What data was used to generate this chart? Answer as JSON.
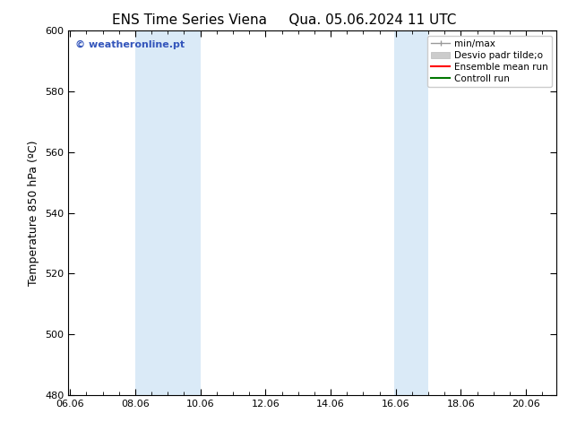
{
  "title_left": "ENS Time Series Viena",
  "title_right": "Qua. 05.06.2024 11 UTC",
  "ylabel": "Temperature 850 hPa (ºC)",
  "xlim": [
    6.0,
    21.0
  ],
  "ylim": [
    480,
    600
  ],
  "yticks": [
    480,
    500,
    520,
    540,
    560,
    580,
    600
  ],
  "xticks": [
    6.06,
    8.06,
    10.06,
    12.06,
    14.06,
    16.06,
    18.06,
    20.06
  ],
  "xtick_labels": [
    "06.06",
    "08.06",
    "10.06",
    "12.06",
    "14.06",
    "16.06",
    "18.06",
    "20.06"
  ],
  "shaded_bands": [
    {
      "x_start": 8.06,
      "x_end": 10.06
    },
    {
      "x_start": 16.0,
      "x_end": 17.06
    }
  ],
  "shade_color": "#daeaf7",
  "background_color": "#ffffff",
  "watermark_text": "© weatheronline.pt",
  "watermark_color": "#3355bb",
  "title_fontsize": 11,
  "label_fontsize": 9,
  "tick_fontsize": 8,
  "legend_fontsize": 7.5
}
